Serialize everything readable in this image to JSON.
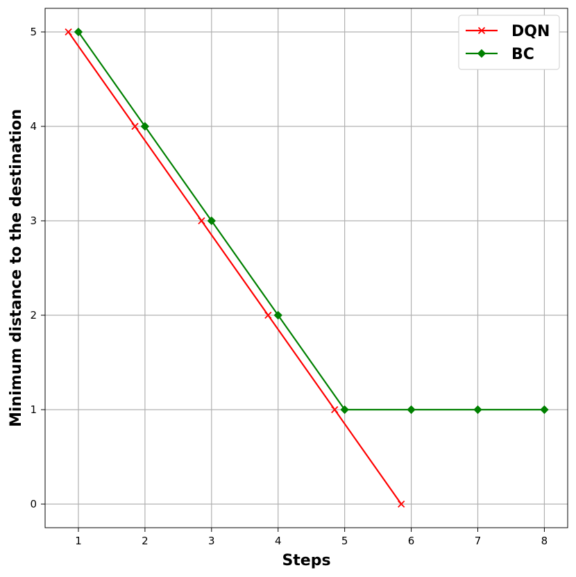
{
  "chart_data": {
    "type": "line",
    "xlabel": "Steps",
    "ylabel": "Minimum distance to the destination",
    "xlim": [
      0.5,
      8.35
    ],
    "ylim": [
      -0.25,
      5.25
    ],
    "xticks": [
      1,
      2,
      3,
      4,
      5,
      6,
      7,
      8
    ],
    "yticks": [
      0,
      1,
      2,
      3,
      4,
      5
    ],
    "grid": true,
    "legend_position": "top-right",
    "series": [
      {
        "name": "DQN",
        "color": "#ff0000",
        "marker": "x",
        "x": [
          0.85,
          1.85,
          2.85,
          3.85,
          4.85,
          5.85
        ],
        "y": [
          5,
          4,
          3,
          2,
          1,
          0
        ]
      },
      {
        "name": "BC",
        "color": "#008000",
        "marker": "diamond",
        "x": [
          1,
          2,
          3,
          4,
          5,
          6,
          7,
          8
        ],
        "y": [
          5,
          4,
          3,
          2,
          1,
          1,
          1,
          1
        ]
      }
    ]
  }
}
